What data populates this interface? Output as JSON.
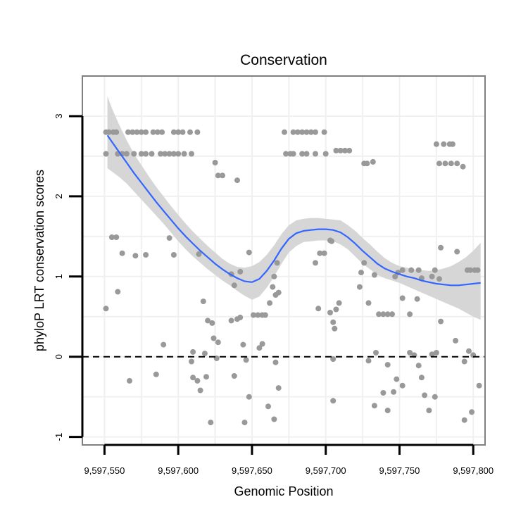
{
  "chart_data": {
    "type": "scatter",
    "title": "Conservation",
    "xlabel": "Genomic Position",
    "ylabel": "phyloP LRT conservation scores",
    "xlim": [
      9597535,
      9597808
    ],
    "ylim": [
      -1.1,
      3.5
    ],
    "x_ticks": [
      {
        "value": 9597550,
        "label": "9,597,550"
      },
      {
        "value": 9597600,
        "label": "9,597,600"
      },
      {
        "value": 9597650,
        "label": "9,597,650"
      },
      {
        "value": 9597700,
        "label": "9,597,700"
      },
      {
        "value": 9597750,
        "label": "9,597,750"
      },
      {
        "value": 9597800,
        "label": "9,597,800"
      }
    ],
    "y_ticks": [
      {
        "value": -1,
        "label": "-1"
      },
      {
        "value": 0,
        "label": "0"
      },
      {
        "value": 1,
        "label": "1"
      },
      {
        "value": 2,
        "label": "2"
      },
      {
        "value": 3,
        "label": "3"
      }
    ],
    "grid": true,
    "reference_line": {
      "y": 0,
      "style": "dashed"
    },
    "colors": {
      "points": "#999999",
      "smooth_line": "#3366ff",
      "ribbon": "#d6d6d6",
      "panel_border": "#7f7f7f",
      "grid": "#f0f0f0"
    },
    "points": [
      {
        "x": 9597551,
        "y": 2.8
      },
      {
        "x": 9597553,
        "y": 2.8
      },
      {
        "x": 9597556,
        "y": 2.8
      },
      {
        "x": 9597558,
        "y": 2.8
      },
      {
        "x": 9597566,
        "y": 2.8
      },
      {
        "x": 9597569,
        "y": 2.8
      },
      {
        "x": 9597572,
        "y": 2.8
      },
      {
        "x": 9597575,
        "y": 2.8
      },
      {
        "x": 9597578,
        "y": 2.8
      },
      {
        "x": 9597583,
        "y": 2.8
      },
      {
        "x": 9597586,
        "y": 2.8
      },
      {
        "x": 9597589,
        "y": 2.8
      },
      {
        "x": 9597597,
        "y": 2.8
      },
      {
        "x": 9597600,
        "y": 2.8
      },
      {
        "x": 9597603,
        "y": 2.8
      },
      {
        "x": 9597608,
        "y": 2.8
      },
      {
        "x": 9597613,
        "y": 2.8
      },
      {
        "x": 9597551,
        "y": 2.53
      },
      {
        "x": 9597559,
        "y": 2.53
      },
      {
        "x": 9597562,
        "y": 2.53
      },
      {
        "x": 9597565,
        "y": 2.53
      },
      {
        "x": 9597570,
        "y": 2.53
      },
      {
        "x": 9597575,
        "y": 2.53
      },
      {
        "x": 9597578,
        "y": 2.53
      },
      {
        "x": 9597582,
        "y": 2.53
      },
      {
        "x": 9597588,
        "y": 2.53
      },
      {
        "x": 9597591,
        "y": 2.53
      },
      {
        "x": 9597594,
        "y": 2.53
      },
      {
        "x": 9597597,
        "y": 2.53
      },
      {
        "x": 9597600,
        "y": 2.53
      },
      {
        "x": 9597604,
        "y": 2.53
      },
      {
        "x": 9597609,
        "y": 2.53
      },
      {
        "x": 9597625,
        "y": 2.42
      },
      {
        "x": 9597627,
        "y": 2.26
      },
      {
        "x": 9597630,
        "y": 2.26
      },
      {
        "x": 9597640,
        "y": 2.2
      },
      {
        "x": 9597672,
        "y": 2.8
      },
      {
        "x": 9597678,
        "y": 2.8
      },
      {
        "x": 9597681,
        "y": 2.8
      },
      {
        "x": 9597684,
        "y": 2.8
      },
      {
        "x": 9597687,
        "y": 2.8
      },
      {
        "x": 9597690,
        "y": 2.8
      },
      {
        "x": 9597693,
        "y": 2.8
      },
      {
        "x": 9597699,
        "y": 2.8
      },
      {
        "x": 9597673,
        "y": 2.53
      },
      {
        "x": 9597676,
        "y": 2.53
      },
      {
        "x": 9597678,
        "y": 2.53
      },
      {
        "x": 9597684,
        "y": 2.53
      },
      {
        "x": 9597687,
        "y": 2.53
      },
      {
        "x": 9597693,
        "y": 2.53
      },
      {
        "x": 9597700,
        "y": 2.53
      },
      {
        "x": 9597707,
        "y": 2.57
      },
      {
        "x": 9597710,
        "y": 2.57
      },
      {
        "x": 9597713,
        "y": 2.57
      },
      {
        "x": 9597716,
        "y": 2.57
      },
      {
        "x": 9597726,
        "y": 2.41
      },
      {
        "x": 9597728,
        "y": 2.41
      },
      {
        "x": 9597732,
        "y": 2.43
      },
      {
        "x": 9597775,
        "y": 2.65
      },
      {
        "x": 9597780,
        "y": 2.65
      },
      {
        "x": 9597784,
        "y": 2.65
      },
      {
        "x": 9597786,
        "y": 2.65
      },
      {
        "x": 9597777,
        "y": 2.41
      },
      {
        "x": 9597781,
        "y": 2.41
      },
      {
        "x": 9597785,
        "y": 2.41
      },
      {
        "x": 9597789,
        "y": 2.41
      },
      {
        "x": 9597793,
        "y": 2.37
      },
      {
        "x": 9597555,
        "y": 1.49
      },
      {
        "x": 9597558,
        "y": 1.49
      },
      {
        "x": 9597562,
        "y": 1.29
      },
      {
        "x": 9597571,
        "y": 1.26
      },
      {
        "x": 9597578,
        "y": 1.27
      },
      {
        "x": 9597594,
        "y": 1.48
      },
      {
        "x": 9597597,
        "y": 1.27
      },
      {
        "x": 9597614,
        "y": 1.28
      },
      {
        "x": 9597648,
        "y": 1.3
      },
      {
        "x": 9597551,
        "y": 0.6
      },
      {
        "x": 9597559,
        "y": 0.81
      },
      {
        "x": 9597636,
        "y": 1.03
      },
      {
        "x": 9597638,
        "y": 0.89
      },
      {
        "x": 9597642,
        "y": 1.06
      },
      {
        "x": 9597667,
        "y": 1.17
      },
      {
        "x": 9597665,
        "y": 1.0
      },
      {
        "x": 9597693,
        "y": 1.17
      },
      {
        "x": 9597696,
        "y": 1.29
      },
      {
        "x": 9597699,
        "y": 1.29
      },
      {
        "x": 9597703,
        "y": 1.45
      },
      {
        "x": 9597704,
        "y": 1.44
      },
      {
        "x": 9597723,
        "y": 0.87
      },
      {
        "x": 9597726,
        "y": 1.17
      },
      {
        "x": 9597724,
        "y": 1.05
      },
      {
        "x": 9597733,
        "y": 1.02
      },
      {
        "x": 9597747,
        "y": 1.0
      },
      {
        "x": 9597749,
        "y": 1.05
      },
      {
        "x": 9597752,
        "y": 1.08
      },
      {
        "x": 9597758,
        "y": 1.08
      },
      {
        "x": 9597763,
        "y": 1.08
      },
      {
        "x": 9597765,
        "y": 0.98
      },
      {
        "x": 9597772,
        "y": 1.0
      },
      {
        "x": 9597774,
        "y": 1.08
      },
      {
        "x": 9597778,
        "y": 1.36
      },
      {
        "x": 9597777,
        "y": 0.97
      },
      {
        "x": 9597789,
        "y": 1.31
      },
      {
        "x": 9597796,
        "y": 1.08
      },
      {
        "x": 9597798,
        "y": 1.08
      },
      {
        "x": 9597801,
        "y": 1.08
      },
      {
        "x": 9597803,
        "y": 1.08
      },
      {
        "x": 9597617,
        "y": 0.69
      },
      {
        "x": 9597640,
        "y": 0.47
      },
      {
        "x": 9597642,
        "y": 0.49
      },
      {
        "x": 9597651,
        "y": 0.52
      },
      {
        "x": 9597654,
        "y": 0.52
      },
      {
        "x": 9597657,
        "y": 0.52
      },
      {
        "x": 9597659,
        "y": 0.52
      },
      {
        "x": 9597662,
        "y": 0.67
      },
      {
        "x": 9597664,
        "y": 0.87
      },
      {
        "x": 9597666,
        "y": 0.77
      },
      {
        "x": 9597668,
        "y": 0.8
      },
      {
        "x": 9597695,
        "y": 0.6
      },
      {
        "x": 9597703,
        "y": 0.55
      },
      {
        "x": 9597705,
        "y": 0.43
      },
      {
        "x": 9597706,
        "y": 0.35
      },
      {
        "x": 9597707,
        "y": 0.59
      },
      {
        "x": 9597709,
        "y": 0.67
      },
      {
        "x": 9597729,
        "y": 0.67
      },
      {
        "x": 9597736,
        "y": 0.53
      },
      {
        "x": 9597739,
        "y": 0.53
      },
      {
        "x": 9597742,
        "y": 0.53
      },
      {
        "x": 9597745,
        "y": 0.53
      },
      {
        "x": 9597752,
        "y": 0.73
      },
      {
        "x": 9597757,
        "y": 0.53
      },
      {
        "x": 9597762,
        "y": 0.72
      },
      {
        "x": 9597778,
        "y": 0.44
      },
      {
        "x": 9597620,
        "y": 0.45
      },
      {
        "x": 9597623,
        "y": 0.42
      },
      {
        "x": 9597636,
        "y": 0.45
      },
      {
        "x": 9597624,
        "y": 0.23
      },
      {
        "x": 9597627,
        "y": 0.18
      },
      {
        "x": 9597644,
        "y": 0.15
      },
      {
        "x": 9597657,
        "y": 0.16
      },
      {
        "x": 9597655,
        "y": 0.11
      },
      {
        "x": 9597610,
        "y": 0.06
      },
      {
        "x": 9597618,
        "y": 0.04
      },
      {
        "x": 9597590,
        "y": 0.15
      },
      {
        "x": 9597734,
        "y": 0.05
      },
      {
        "x": 9597757,
        "y": 0.05
      },
      {
        "x": 9597760,
        "y": 0.02
      },
      {
        "x": 9597772,
        "y": 0.03
      },
      {
        "x": 9597775,
        "y": 0.05
      },
      {
        "x": 9597788,
        "y": 0.2
      },
      {
        "x": 9597797,
        "y": 0.07
      },
      {
        "x": 9597800,
        "y": 0.02
      },
      {
        "x": 9597609,
        "y": -0.06
      },
      {
        "x": 9597626,
        "y": -0.02
      },
      {
        "x": 9597646,
        "y": -0.04
      },
      {
        "x": 9597666,
        "y": -0.07
      },
      {
        "x": 9597705,
        "y": -0.03
      },
      {
        "x": 9597729,
        "y": -0.05
      },
      {
        "x": 9597742,
        "y": -0.1
      },
      {
        "x": 9597763,
        "y": -0.11
      },
      {
        "x": 9597794,
        "y": -0.06
      },
      {
        "x": 9597567,
        "y": -0.3
      },
      {
        "x": 9597585,
        "y": -0.22
      },
      {
        "x": 9597610,
        "y": -0.26
      },
      {
        "x": 9597613,
        "y": -0.3
      },
      {
        "x": 9597615,
        "y": -0.42
      },
      {
        "x": 9597619,
        "y": -0.25
      },
      {
        "x": 9597638,
        "y": -0.24
      },
      {
        "x": 9597668,
        "y": -0.39
      },
      {
        "x": 9597748,
        "y": -0.28
      },
      {
        "x": 9597752,
        "y": -0.36
      },
      {
        "x": 9597765,
        "y": -0.26
      },
      {
        "x": 9597804,
        "y": -0.36
      },
      {
        "x": 9597648,
        "y": -0.5
      },
      {
        "x": 9597705,
        "y": -0.55
      },
      {
        "x": 9597739,
        "y": -0.45
      },
      {
        "x": 9597746,
        "y": -0.44
      },
      {
        "x": 9597767,
        "y": -0.48
      },
      {
        "x": 9597774,
        "y": -0.5
      },
      {
        "x": 9597733,
        "y": -0.61
      },
      {
        "x": 9597742,
        "y": -0.67
      },
      {
        "x": 9597661,
        "y": -0.62
      },
      {
        "x": 9597665,
        "y": -0.78
      },
      {
        "x": 9597770,
        "y": -0.67
      },
      {
        "x": 9597794,
        "y": -0.79
      },
      {
        "x": 9597799,
        "y": -0.69
      },
      {
        "x": 9597622,
        "y": -0.82
      },
      {
        "x": 9597645,
        "y": -0.82
      }
    ],
    "smooth_fit": {
      "x": [
        9597552,
        9597555,
        9597560,
        9597565,
        9597570,
        9597575,
        9597580,
        9597585,
        9597590,
        9597595,
        9597600,
        9597605,
        9597610,
        9597615,
        9597620,
        9597625,
        9597630,
        9597635,
        9597640,
        9597645,
        9597650,
        9597655,
        9597660,
        9597665,
        9597670,
        9597675,
        9597680,
        9597685,
        9597690,
        9597695,
        9597700,
        9597705,
        9597710,
        9597715,
        9597720,
        9597725,
        9597730,
        9597735,
        9597740,
        9597745,
        9597750,
        9597755,
        9597760,
        9597765,
        9597770,
        9597775,
        9597780,
        9597785,
        9597790,
        9597795,
        9597800,
        9597805
      ],
      "y": [
        2.76,
        2.68,
        2.55,
        2.42,
        2.29,
        2.17,
        2.05,
        1.93,
        1.82,
        1.71,
        1.6,
        1.5,
        1.41,
        1.32,
        1.24,
        1.16,
        1.09,
        1.03,
        0.98,
        0.94,
        0.93,
        0.97,
        1.07,
        1.2,
        1.35,
        1.47,
        1.54,
        1.57,
        1.58,
        1.59,
        1.59,
        1.58,
        1.55,
        1.49,
        1.41,
        1.32,
        1.24,
        1.16,
        1.1,
        1.06,
        1.03,
        1.0,
        0.98,
        0.95,
        0.93,
        0.91,
        0.9,
        0.89,
        0.89,
        0.9,
        0.91,
        0.92
      ],
      "lower": [
        2.35,
        2.31,
        2.24,
        2.16,
        2.06,
        1.96,
        1.86,
        1.76,
        1.66,
        1.55,
        1.44,
        1.34,
        1.25,
        1.17,
        1.09,
        1.02,
        0.95,
        0.89,
        0.82,
        0.76,
        0.71,
        0.75,
        0.86,
        1.0,
        1.16,
        1.3,
        1.38,
        1.43,
        1.44,
        1.45,
        1.45,
        1.44,
        1.4,
        1.34,
        1.25,
        1.16,
        1.09,
        1.02,
        0.98,
        0.95,
        0.92,
        0.88,
        0.84,
        0.8,
        0.76,
        0.72,
        0.68,
        0.64,
        0.6,
        0.55,
        0.5,
        0.46
      ],
      "upper": [
        3.25,
        3.1,
        2.89,
        2.7,
        2.53,
        2.39,
        2.25,
        2.12,
        2.0,
        1.88,
        1.77,
        1.66,
        1.56,
        1.47,
        1.38,
        1.3,
        1.22,
        1.16,
        1.12,
        1.11,
        1.13,
        1.18,
        1.27,
        1.39,
        1.53,
        1.64,
        1.7,
        1.72,
        1.73,
        1.73,
        1.72,
        1.71,
        1.7,
        1.64,
        1.57,
        1.48,
        1.4,
        1.31,
        1.23,
        1.17,
        1.13,
        1.11,
        1.09,
        1.08,
        1.07,
        1.08,
        1.1,
        1.13,
        1.18,
        1.24,
        1.32,
        1.42
      ]
    }
  }
}
